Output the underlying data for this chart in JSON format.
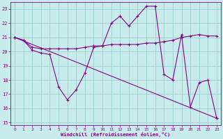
{
  "xlabel": "Windchill (Refroidissement éolien,°C)",
  "bg_color": "#c8ecec",
  "grid_color": "#a0d4d4",
  "line_color": "#880088",
  "ylim": [
    14.8,
    23.5
  ],
  "xlim": [
    -0.5,
    23.5
  ],
  "yticks": [
    15,
    16,
    17,
    18,
    19,
    20,
    21,
    22,
    23
  ],
  "xticks": [
    0,
    1,
    2,
    3,
    4,
    5,
    6,
    7,
    8,
    9,
    10,
    11,
    12,
    13,
    14,
    15,
    16,
    17,
    18,
    19,
    20,
    21,
    22,
    23
  ],
  "series1_x": [
    0,
    1,
    2,
    3,
    4,
    5,
    6,
    7,
    8,
    9,
    10,
    11,
    12,
    13,
    14,
    15,
    16,
    17,
    18,
    19,
    20,
    21,
    22,
    23
  ],
  "series1_y": [
    21.0,
    20.8,
    20.1,
    19.9,
    19.8,
    17.5,
    16.6,
    17.3,
    18.5,
    20.3,
    20.4,
    22.0,
    22.5,
    21.8,
    22.5,
    23.2,
    23.2,
    18.4,
    18.0,
    21.2,
    16.1,
    17.8,
    18.0,
    15.3
  ],
  "series2_x": [
    0,
    1,
    2,
    3,
    4,
    5,
    6,
    7,
    8,
    9,
    10,
    11,
    12,
    13,
    14,
    15,
    16,
    17,
    18,
    19,
    20,
    21,
    22,
    23
  ],
  "series2_y": [
    21.0,
    20.8,
    20.3,
    20.2,
    20.2,
    20.2,
    20.2,
    20.2,
    20.3,
    20.4,
    20.4,
    20.5,
    20.5,
    20.5,
    20.5,
    20.6,
    20.6,
    20.7,
    20.8,
    21.0,
    21.1,
    21.2,
    21.1,
    21.1
  ],
  "series3_x": [
    0,
    23
  ],
  "series3_y": [
    21.0,
    15.3
  ]
}
